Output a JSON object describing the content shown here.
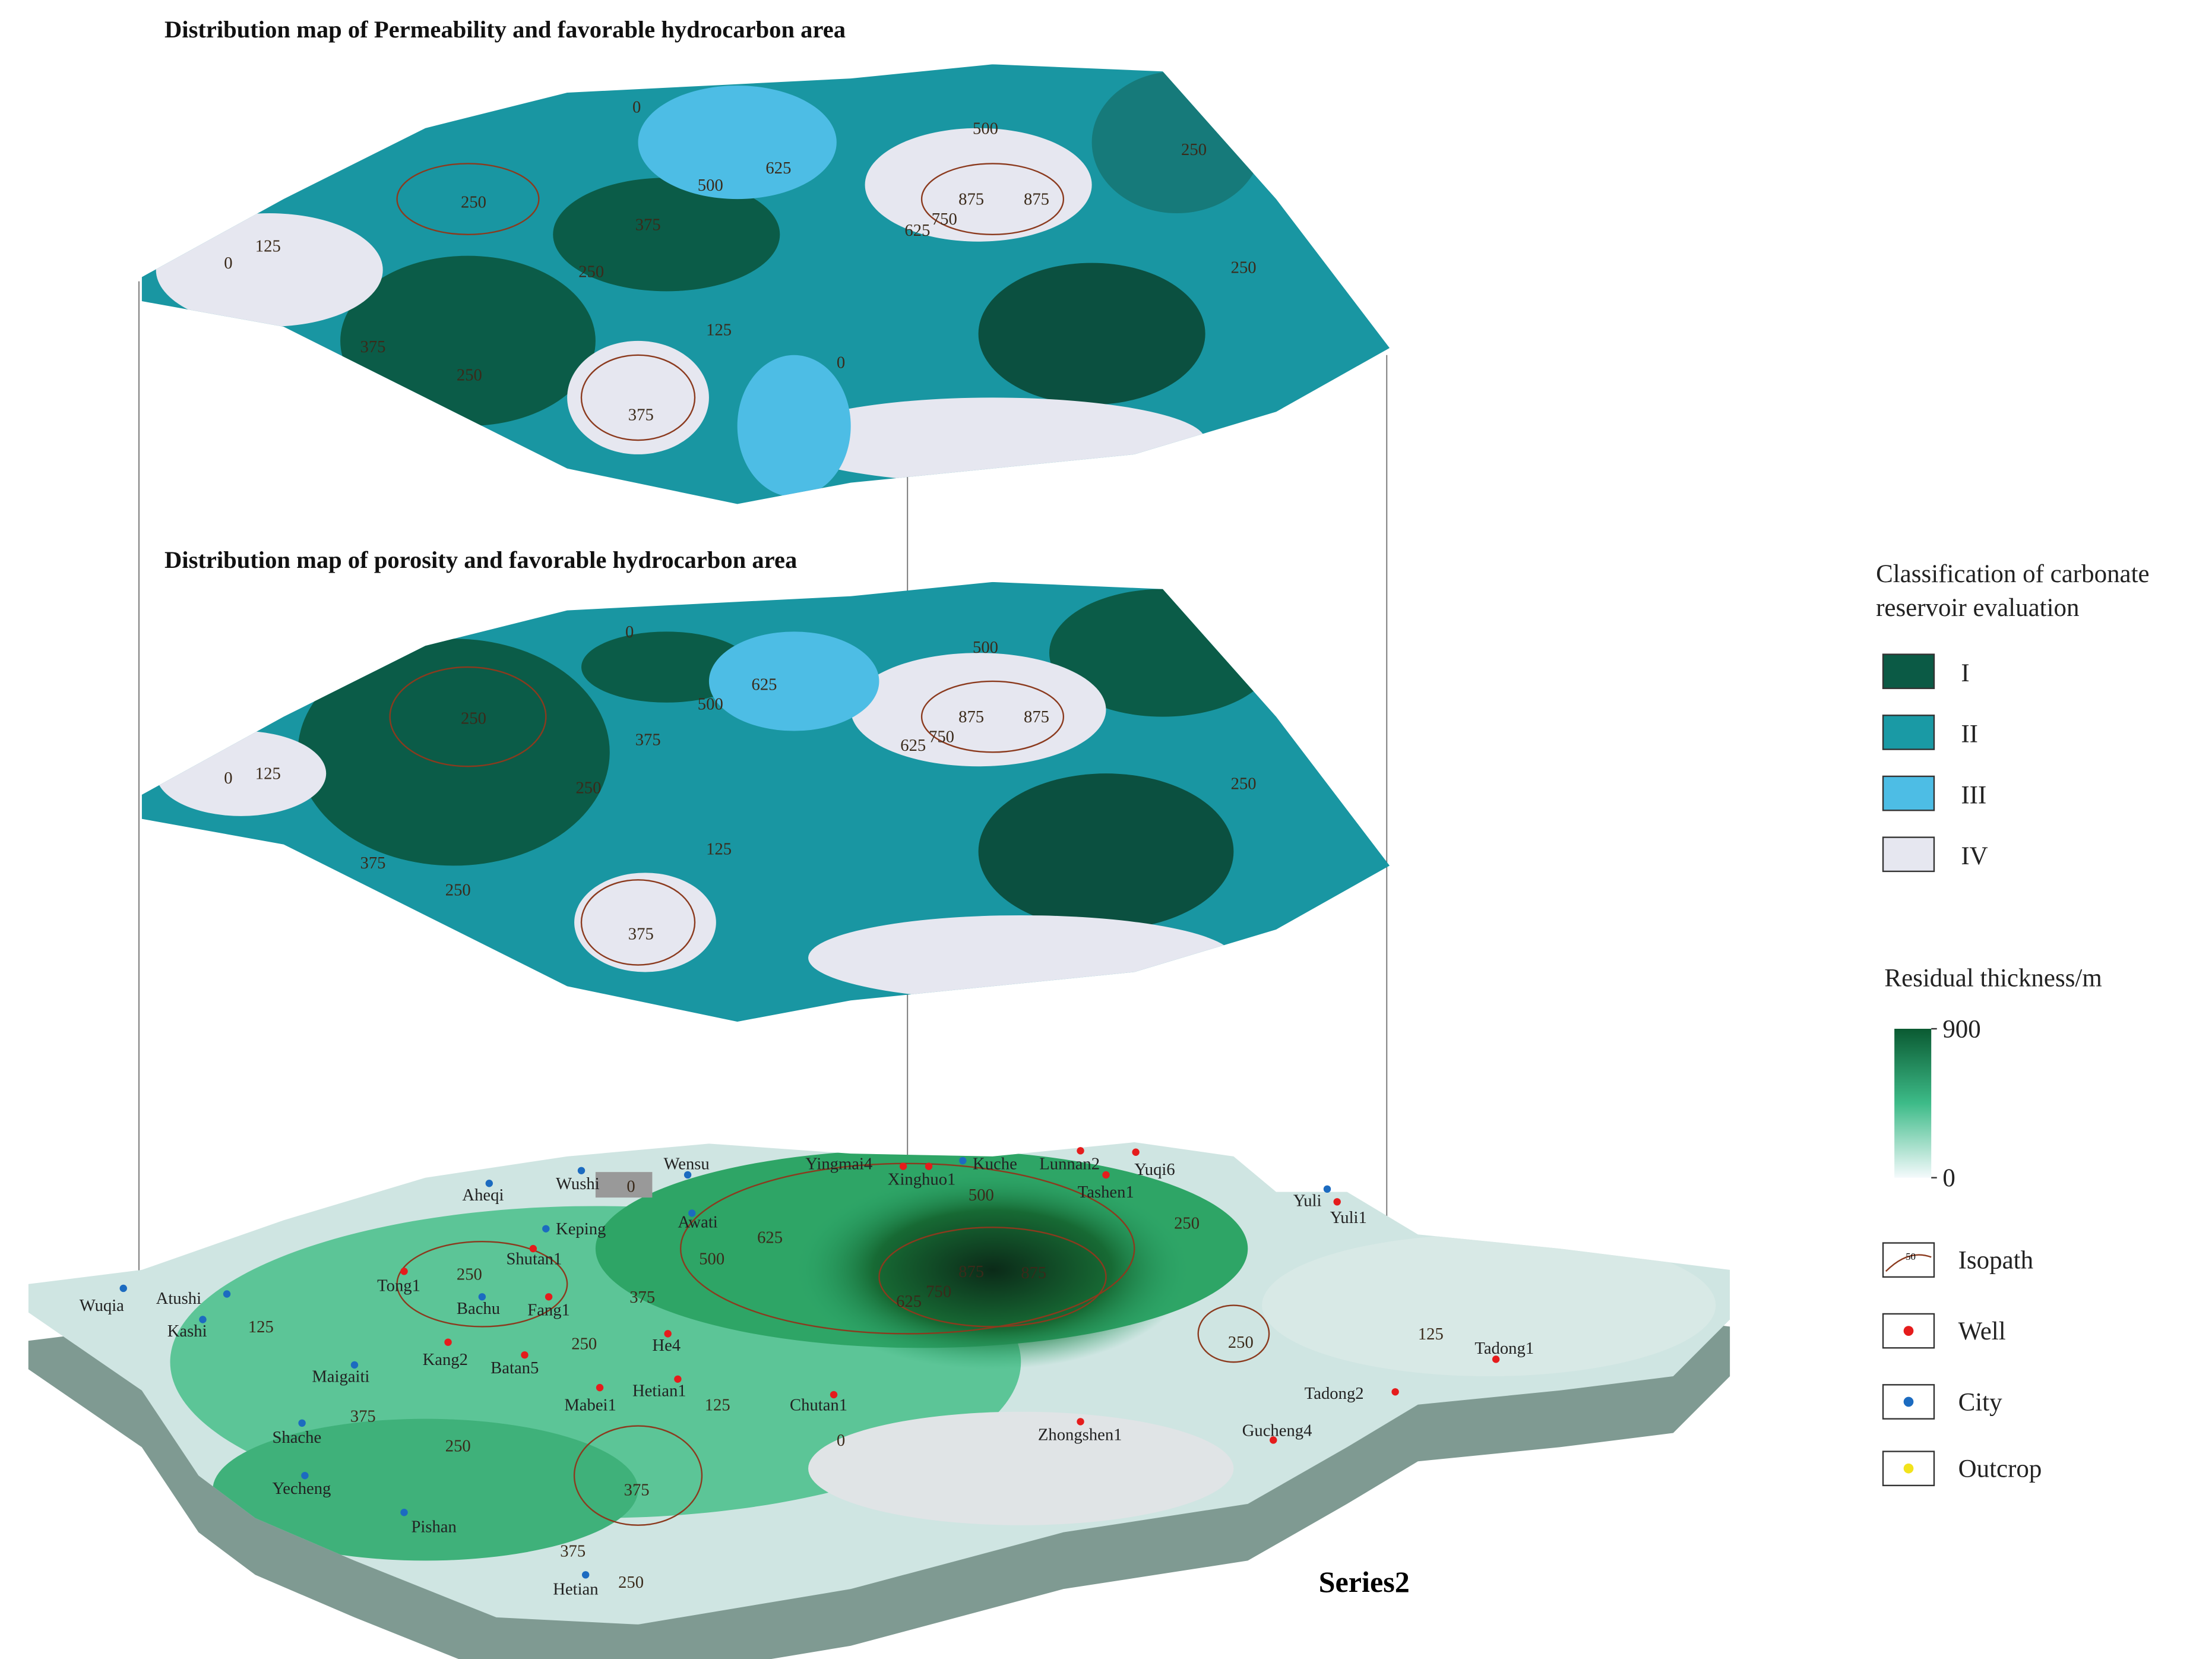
{
  "titles": {
    "permeability": "Distribution map of Permeability and favorable hydrocarbon area",
    "porosity": "Distribution map of porosity and favorable hydrocarbon area",
    "series": "Series2"
  },
  "legend": {
    "classification": {
      "title": [
        "Classification of carbonate",
        "reservoir evaluation"
      ],
      "classes": [
        "I",
        "II",
        "III",
        "IV"
      ]
    },
    "thickness": {
      "title": "Residual thickness/m",
      "ticks": [
        0,
        900
      ]
    },
    "symbols": [
      "Isopath",
      "Well",
      "City",
      "Outcrop"
    ],
    "isopath_sample": "50"
  },
  "cities": [
    "Wuqia",
    "Atushi",
    "Kashi",
    "Aheqi",
    "Wushi",
    "Wensu",
    "Keping",
    "Awati",
    "Kuche",
    "Yuli",
    "Bachu",
    "Maigaiti",
    "Shache",
    "Yecheng",
    "Pishan",
    "Hetian"
  ],
  "wells": [
    "Yingmai4",
    "Xinghuo1",
    "Lunnan2",
    "Yuqi6",
    "Tashen1",
    "Yuli1",
    "Shutan1",
    "Tong1",
    "Fang1",
    "He4",
    "Kang2",
    "Batan5",
    "Hetian1",
    "Mabei1",
    "Chutan1",
    "Zhongshen1",
    "Gucheng4",
    "Tadong2",
    "Tadong1"
  ],
  "contour_labels": {
    "permeability": [
      0,
      625,
      500,
      500,
      250,
      250,
      375,
      875,
      875,
      750,
      625,
      0,
      125,
      250,
      250,
      125,
      375,
      250,
      0,
      375
    ],
    "porosity": [
      0,
      625,
      500,
      500,
      250,
      375,
      875,
      875,
      750,
      625,
      0,
      125,
      250,
      250,
      125,
      375,
      250,
      375
    ],
    "thickness": [
      0,
      500,
      625,
      500,
      250,
      875,
      875,
      750,
      625,
      250,
      375,
      250,
      250,
      125,
      125,
      375,
      250,
      125,
      0,
      375,
      375,
      250
    ]
  }
}
